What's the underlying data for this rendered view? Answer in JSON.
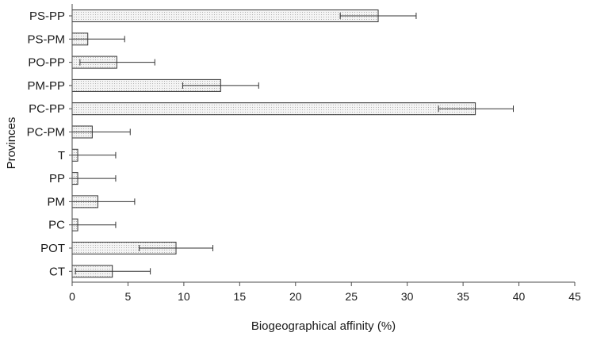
{
  "chart_data": {
    "type": "bar",
    "orientation": "horizontal",
    "title": "",
    "xlabel": "Biogeographical affinity (%)",
    "ylabel": "Provinces",
    "xlim": [
      0,
      45
    ],
    "xticks": [
      0,
      5,
      10,
      15,
      20,
      25,
      30,
      35,
      40,
      45
    ],
    "categories": [
      "PS-PP",
      "PS-PM",
      "PO-PP",
      "PM-PP",
      "PC-PP",
      "PC-PM",
      "T",
      "PP",
      "PM",
      "PC",
      "POT",
      "CT"
    ],
    "values": [
      27.4,
      1.4,
      4.0,
      13.3,
      36.1,
      1.8,
      0.5,
      0.5,
      2.3,
      0.5,
      9.3,
      3.6
    ],
    "error_low": [
      24.0,
      0.0,
      0.7,
      9.9,
      32.8,
      0.0,
      0.0,
      0.0,
      0.0,
      0.0,
      6.0,
      0.3
    ],
    "error_high": [
      30.8,
      4.7,
      7.4,
      16.7,
      39.5,
      5.2,
      3.9,
      3.9,
      5.6,
      3.9,
      12.6,
      7.0
    ],
    "grid": false,
    "legend": "none",
    "colors": {
      "bar_fill": "#f2f2f2",
      "bar_stroke": "#333333",
      "axis": "#4d4d4d",
      "error_bar": "#333333"
    }
  }
}
